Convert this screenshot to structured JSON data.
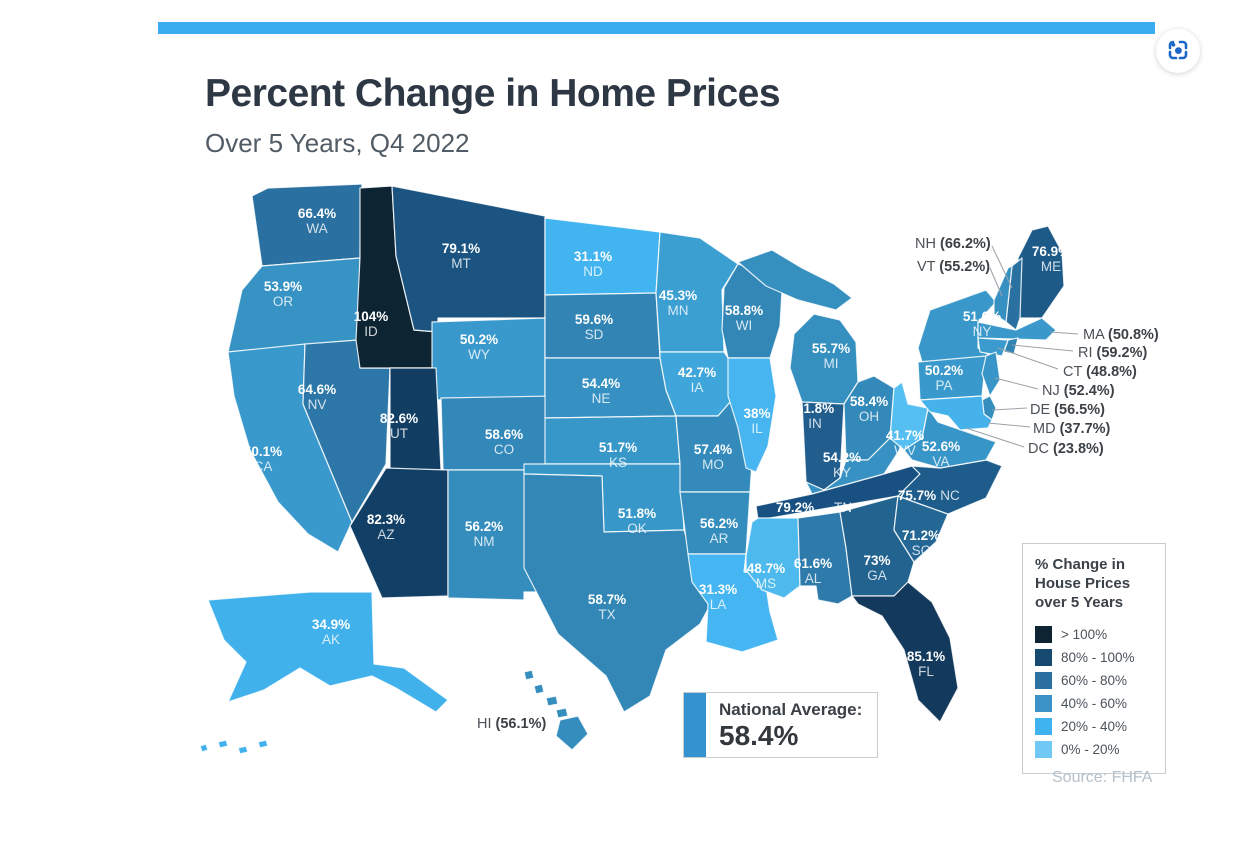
{
  "header": {
    "title": "Percent Change in Home Prices",
    "subtitle": "Over 5 Years, Q4 2022",
    "accent_bar_color": "#3aadf1"
  },
  "toolbar": {
    "lens_icon_color": "#1b66c9"
  },
  "footer": {
    "source": "Source: FHFA"
  },
  "national_average": {
    "label": "National Average:",
    "value": "58.4%",
    "bar_color": "#3492cf"
  },
  "legend": {
    "title_lines": [
      "% Change in",
      "House Prices",
      "over 5 Years"
    ],
    "items": [
      {
        "label": "> 100%",
        "color": "#0e2433"
      },
      {
        "label": "80% - 100%",
        "color": "#164a70"
      },
      {
        "label": "60% - 80%",
        "color": "#2b70a0"
      },
      {
        "label": "40% - 60%",
        "color": "#3b92c7"
      },
      {
        "label": "20% - 40%",
        "color": "#3fb3f0"
      },
      {
        "label": "0% - 20%",
        "color": "#70c9f4"
      }
    ]
  },
  "map": {
    "label_color": "#ffffff",
    "callout_text_color": "#4b5157",
    "states": [
      {
        "abbr": "WA",
        "value": "66.4%",
        "color": "#2a70a0"
      },
      {
        "abbr": "OR",
        "value": "53.9%",
        "color": "#3793c4"
      },
      {
        "abbr": "CA",
        "value": "50.1%",
        "color": "#3a99cc"
      },
      {
        "abbr": "NV",
        "value": "64.6%",
        "color": "#2d77a8"
      },
      {
        "abbr": "ID",
        "value": "104%",
        "color": "#0d2433"
      },
      {
        "abbr": "MT",
        "value": "79.1%",
        "color": "#1b5480"
      },
      {
        "abbr": "WY",
        "value": "50.2%",
        "color": "#3a99cc"
      },
      {
        "abbr": "UT",
        "value": "82.6%",
        "color": "#123e64"
      },
      {
        "abbr": "CO",
        "value": "58.6%",
        "color": "#3288b8"
      },
      {
        "abbr": "AZ",
        "value": "82.3%",
        "color": "#123f66"
      },
      {
        "abbr": "NM",
        "value": "56.2%",
        "color": "#358dbe"
      },
      {
        "abbr": "ND",
        "value": "31.1%",
        "color": "#42b4f0"
      },
      {
        "abbr": "SD",
        "value": "59.6%",
        "color": "#3184b4"
      },
      {
        "abbr": "NE",
        "value": "54.4%",
        "color": "#3691c2"
      },
      {
        "abbr": "KS",
        "value": "51.7%",
        "color": "#3897c9"
      },
      {
        "abbr": "OK",
        "value": "51.8%",
        "color": "#3897c9"
      },
      {
        "abbr": "TX",
        "value": "58.7%",
        "color": "#3287b7"
      },
      {
        "abbr": "MN",
        "value": "45.3%",
        "color": "#3b9fd2"
      },
      {
        "abbr": "IA",
        "value": "42.7%",
        "color": "#3ea6da"
      },
      {
        "abbr": "MO",
        "value": "57.4%",
        "color": "#348bbb"
      },
      {
        "abbr": "AR",
        "value": "56.2%",
        "color": "#358dbe"
      },
      {
        "abbr": "LA",
        "value": "31.3%",
        "color": "#45b6f1"
      },
      {
        "abbr": "WI",
        "value": "58.8%",
        "color": "#3287b7"
      },
      {
        "abbr": "IL",
        "value": "38%",
        "color": "#47b5ef"
      },
      {
        "abbr": "MI",
        "value": "55.7%",
        "color": "#358fbf"
      },
      {
        "abbr": "IN",
        "value": "61.8%",
        "color": "#215e8e"
      },
      {
        "abbr": "OH",
        "value": "58.4%",
        "color": "#3389b9"
      },
      {
        "abbr": "KY",
        "value": "54.2%",
        "color": "#3792c3"
      },
      {
        "abbr": "TN",
        "value": "79.2%",
        "color": "#185181"
      },
      {
        "abbr": "MS",
        "value": "48.7%",
        "color": "#4db9ed"
      },
      {
        "abbr": "AL",
        "value": "61.6%",
        "color": "#2e7aab"
      },
      {
        "abbr": "GA",
        "value": "73%",
        "color": "#226390"
      },
      {
        "abbr": "FL",
        "value": "85.1%",
        "color": "#13395c"
      },
      {
        "abbr": "SC",
        "value": "71.2%",
        "color": "#246795"
      },
      {
        "abbr": "NC",
        "value": "75.7%",
        "color": "#1e5c8c"
      },
      {
        "abbr": "VA",
        "value": "52.6%",
        "color": "#3895c7"
      },
      {
        "abbr": "WV",
        "value": "41.7%",
        "color": "#55bff1"
      },
      {
        "abbr": "ME",
        "value": "76.9%",
        "color": "#1d5a88"
      },
      {
        "abbr": "NY",
        "value": "51.6%",
        "color": "#3997ca"
      },
      {
        "abbr": "PA",
        "value": "50.2%",
        "color": "#3a99cc"
      },
      {
        "abbr": "AK",
        "value": "34.9%",
        "color": "#41b1ec"
      },
      {
        "abbr": "NH",
        "value": "66.2%",
        "color": "#2a70a0",
        "callout": true
      },
      {
        "abbr": "VT",
        "value": "55.2%",
        "color": "#3690c1",
        "callout": true
      },
      {
        "abbr": "MA",
        "value": "50.8%",
        "color": "#3a98cb",
        "callout": true
      },
      {
        "abbr": "RI",
        "value": "59.2%",
        "color": "#3185b5",
        "callout": true
      },
      {
        "abbr": "CT",
        "value": "48.8%",
        "color": "#3b9bce",
        "callout": true
      },
      {
        "abbr": "NJ",
        "value": "52.4%",
        "color": "#3895c7",
        "callout": true
      },
      {
        "abbr": "DE",
        "value": "56.5%",
        "color": "#348dbd",
        "callout": true
      },
      {
        "abbr": "MD",
        "value": "37.7%",
        "color": "#46b2ec",
        "callout": true
      },
      {
        "abbr": "DC",
        "value": "23.8%",
        "color": "#68c6f3",
        "callout": true
      },
      {
        "abbr": "HI",
        "value": "56.1%",
        "color": "#358dbe",
        "callout": true
      }
    ]
  },
  "chart_data": {
    "type": "heatmap",
    "subtype": "choropleth-us-states",
    "title": "Percent Change in Home Prices",
    "subtitle": "Over 5 Years, Q4 2022",
    "unit": "percent change over 5 years",
    "national_average": 58.4,
    "source": "Source: FHFA",
    "legend_title": "% Change in House Prices over 5 Years",
    "legend_bins": [
      "> 100%",
      "80% - 100%",
      "60% - 80%",
      "40% - 60%",
      "20% - 40%",
      "0% - 20%"
    ],
    "categories": [
      "WA",
      "OR",
      "CA",
      "NV",
      "ID",
      "MT",
      "WY",
      "UT",
      "CO",
      "AZ",
      "NM",
      "ND",
      "SD",
      "NE",
      "KS",
      "OK",
      "TX",
      "MN",
      "IA",
      "MO",
      "AR",
      "LA",
      "WI",
      "IL",
      "MI",
      "IN",
      "OH",
      "KY",
      "TN",
      "MS",
      "AL",
      "GA",
      "FL",
      "SC",
      "NC",
      "VA",
      "WV",
      "ME",
      "NY",
      "PA",
      "AK",
      "NH",
      "VT",
      "MA",
      "RI",
      "CT",
      "NJ",
      "DE",
      "MD",
      "DC",
      "HI"
    ],
    "values": [
      66.4,
      53.9,
      50.1,
      64.6,
      104,
      79.1,
      50.2,
      82.6,
      58.6,
      82.3,
      56.2,
      31.1,
      59.6,
      54.4,
      51.7,
      51.8,
      58.7,
      45.3,
      42.7,
      57.4,
      56.2,
      31.3,
      58.8,
      38,
      55.7,
      61.8,
      58.4,
      54.2,
      79.2,
      48.7,
      61.6,
      73,
      85.1,
      71.2,
      75.7,
      52.6,
      41.7,
      76.9,
      51.6,
      50.2,
      34.9,
      66.2,
      55.2,
      50.8,
      59.2,
      48.8,
      52.4,
      56.5,
      37.7,
      23.8,
      56.1
    ]
  }
}
